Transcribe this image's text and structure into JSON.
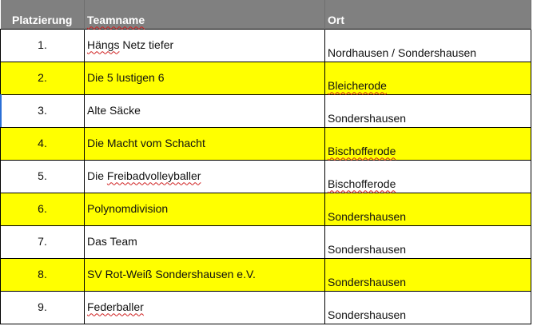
{
  "header": {
    "rank": "Platzierung",
    "team": "Teamname",
    "ort": "Ort"
  },
  "highlight_color": "#ffff00",
  "header_color": "#808080",
  "rows": [
    {
      "rank": "1.",
      "team": "Hängs Netz tiefer",
      "ort": "Nordhausen / Sondershausen",
      "highlight": false
    },
    {
      "rank": "2.",
      "team": "Die 5 lustigen 6",
      "ort": "Bleicherode",
      "highlight": true
    },
    {
      "rank": "3.",
      "team": "Alte Säcke",
      "ort": "Sondershausen",
      "highlight": false
    },
    {
      "rank": "4.",
      "team": "Die Macht vom Schacht",
      "ort": "Bischofferode",
      "highlight": true
    },
    {
      "rank": "5.",
      "team": "Die Freibadvolleyballer",
      "ort": "Bischofferode",
      "highlight": false
    },
    {
      "rank": "6.",
      "team": "Polynomdivision",
      "ort": "Sondershausen",
      "highlight": true
    },
    {
      "rank": "7.",
      "team": "Das Team",
      "ort": "Sondershausen",
      "highlight": false
    },
    {
      "rank": "8.",
      "team": "SV Rot-Weiß Sondershausen e.V.",
      "ort": "Sondershausen",
      "highlight": true
    },
    {
      "rank": "9.",
      "team": "Federballer",
      "ort": "Sondershausen",
      "highlight": false
    }
  ]
}
